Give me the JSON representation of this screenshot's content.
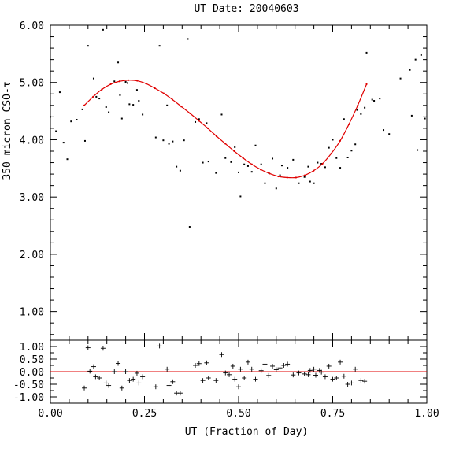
{
  "chart_data": [
    {
      "type": "scatter",
      "title": "UT Date: 20040603",
      "ylabel": "350 micron CSO-τ",
      "xlim": [
        0,
        1
      ],
      "ylim": [
        0.5,
        6.0
      ],
      "y_ticks": [
        "1.00",
        "2.00",
        "3.00",
        "4.00",
        "5.00",
        "6.00"
      ],
      "y_tick_values": [
        1,
        2,
        3,
        4,
        5,
        6
      ],
      "series": [
        {
          "kind": "points",
          "x": [
            0.0,
            0.015,
            0.025,
            0.035,
            0.045,
            0.055,
            0.07,
            0.085,
            0.092,
            0.1,
            0.115,
            0.122,
            0.13,
            0.14,
            0.148,
            0.155,
            0.17,
            0.18,
            0.185,
            0.19,
            0.2,
            0.205,
            0.21,
            0.22,
            0.23,
            0.235,
            0.245,
            0.28,
            0.29,
            0.3,
            0.31,
            0.315,
            0.325,
            0.335,
            0.345,
            0.355,
            0.365,
            0.37,
            0.385,
            0.395,
            0.405,
            0.415,
            0.42,
            0.44,
            0.455,
            0.465,
            0.48,
            0.49,
            0.5,
            0.505,
            0.515,
            0.525,
            0.535,
            0.545,
            0.56,
            0.57,
            0.58,
            0.59,
            0.6,
            0.61,
            0.615,
            0.63,
            0.645,
            0.66,
            0.675,
            0.685,
            0.69,
            0.7,
            0.71,
            0.72,
            0.73,
            0.74,
            0.75,
            0.76,
            0.77,
            0.78,
            0.79,
            0.8,
            0.81,
            0.815,
            0.825,
            0.835,
            0.84,
            0.855,
            0.86,
            0.875,
            0.885,
            0.9,
            0.93,
            0.955,
            0.96,
            0.97,
            0.975,
            0.985,
            0.995
          ],
          "y": [
            4.4,
            4.15,
            4.83,
            3.95,
            3.66,
            4.32,
            4.35,
            4.53,
            3.98,
            5.64,
            5.07,
            4.75,
            4.72,
            5.92,
            4.57,
            4.48,
            5.02,
            5.35,
            4.78,
            4.37,
            5.01,
            4.99,
            4.62,
            4.61,
            4.87,
            4.68,
            4.44,
            4.04,
            5.64,
            3.99,
            4.6,
            3.93,
            3.97,
            3.53,
            3.46,
            3.99,
            5.76,
            2.48,
            4.31,
            4.36,
            3.6,
            4.29,
            3.62,
            3.42,
            4.44,
            3.68,
            3.61,
            3.87,
            3.43,
            3.01,
            3.57,
            3.54,
            3.44,
            3.9,
            3.57,
            3.24,
            3.42,
            3.67,
            3.15,
            3.38,
            3.55,
            3.51,
            3.65,
            3.24,
            3.35,
            3.53,
            3.27,
            3.24,
            3.6,
            3.58,
            3.52,
            3.86,
            4.0,
            3.68,
            3.51,
            4.36,
            3.69,
            3.81,
            3.92,
            4.52,
            4.45,
            4.56,
            5.52,
            4.7,
            4.68,
            4.72,
            4.17,
            4.1,
            5.07,
            5.22,
            4.42,
            5.4,
            3.82,
            5.48,
            4.37
          ]
        },
        {
          "kind": "fit",
          "x_range": [
            0.09,
            0.84
          ],
          "y": [
            4.6,
            4.75,
            4.88,
            4.97,
            5.02,
            5.04,
            5.03,
            4.98,
            4.9,
            4.81,
            4.7,
            4.58,
            4.46,
            4.33,
            4.2,
            4.06,
            3.93,
            3.8,
            3.68,
            3.57,
            3.48,
            3.41,
            3.36,
            3.34,
            3.34,
            3.38,
            3.46,
            3.58,
            3.76,
            3.98,
            4.27,
            4.6,
            4.97
          ]
        }
      ]
    },
    {
      "type": "scatter",
      "xlabel": "UT (Fraction of Day)",
      "xlim": [
        0,
        1
      ],
      "ylim": [
        -1.25,
        1.25
      ],
      "x_ticks": [
        "0.00",
        "0.25",
        "0.50",
        "0.75",
        "1.00"
      ],
      "x_tick_values": [
        0,
        0.25,
        0.5,
        0.75,
        1
      ],
      "y_ticks": [
        "1.00",
        "0.50",
        "0.00",
        "-0.50",
        "-1.00"
      ],
      "y_tick_values": [
        1,
        0.5,
        0,
        -0.5,
        -1
      ],
      "series": [
        {
          "kind": "residuals",
          "x": [
            0.09,
            0.1,
            0.105,
            0.115,
            0.12,
            0.13,
            0.14,
            0.148,
            0.155,
            0.17,
            0.18,
            0.19,
            0.2,
            0.21,
            0.22,
            0.23,
            0.235,
            0.245,
            0.28,
            0.29,
            0.31,
            0.315,
            0.325,
            0.335,
            0.345,
            0.385,
            0.395,
            0.405,
            0.415,
            0.42,
            0.44,
            0.455,
            0.465,
            0.475,
            0.485,
            0.49,
            0.5,
            0.505,
            0.515,
            0.525,
            0.535,
            0.545,
            0.56,
            0.57,
            0.58,
            0.59,
            0.6,
            0.61,
            0.62,
            0.63,
            0.645,
            0.66,
            0.675,
            0.685,
            0.69,
            0.7,
            0.705,
            0.715,
            0.72,
            0.73,
            0.74,
            0.75,
            0.76,
            0.77,
            0.78,
            0.79,
            0.8,
            0.81,
            0.825,
            0.835
          ],
          "y": [
            -0.65,
            0.95,
            0.02,
            0.2,
            -0.2,
            -0.25,
            0.93,
            -0.45,
            -0.55,
            0.0,
            0.33,
            -0.65,
            0.0,
            -0.35,
            -0.3,
            -0.06,
            -0.45,
            -0.2,
            -0.6,
            1.02,
            0.1,
            -0.55,
            -0.4,
            -0.85,
            -0.85,
            0.25,
            0.32,
            -0.35,
            0.35,
            -0.25,
            -0.35,
            0.68,
            -0.05,
            -0.12,
            0.22,
            -0.3,
            -0.6,
            0.1,
            -0.25,
            0.38,
            0.1,
            -0.3,
            0.04,
            0.3,
            -0.15,
            0.22,
            0.08,
            0.15,
            0.25,
            0.3,
            -0.13,
            -0.05,
            -0.09,
            -0.12,
            0.05,
            0.1,
            -0.14,
            0.05,
            -0.02,
            -0.2,
            0.22,
            -0.3,
            -0.25,
            0.38,
            -0.18,
            -0.5,
            -0.45,
            0.1,
            -0.35,
            -0.38
          ]
        }
      ]
    }
  ]
}
